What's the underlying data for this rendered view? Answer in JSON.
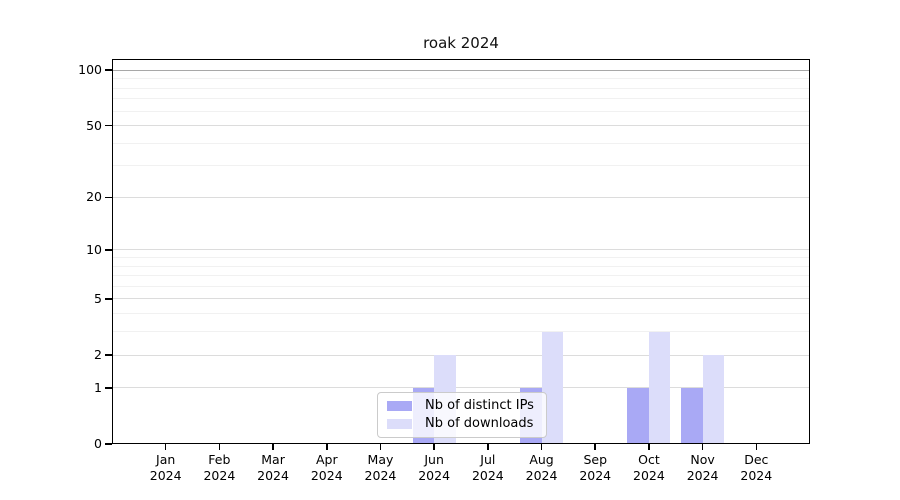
{
  "chart_data": {
    "type": "bar",
    "title": "roak 2024",
    "categories": [
      "Jan",
      "Feb",
      "Mar",
      "Apr",
      "May",
      "Jun",
      "Jul",
      "Aug",
      "Sep",
      "Oct",
      "Nov",
      "Dec"
    ],
    "category_year": "2024",
    "series": [
      {
        "name": "Nb of distinct IPs",
        "color": "#a9a9f5",
        "values": [
          0,
          0,
          0,
          0,
          0,
          1,
          0,
          1,
          0,
          1,
          1,
          0
        ]
      },
      {
        "name": "Nb of downloads",
        "color": "#dcddfa",
        "values": [
          0,
          0,
          0,
          0,
          0,
          2,
          0,
          3,
          0,
          3,
          2,
          0
        ]
      }
    ],
    "yscale": "log1p",
    "ylim": [
      0,
      115
    ],
    "yticks": [
      0,
      1,
      2,
      5,
      10,
      20,
      50,
      100
    ],
    "yminorticks": [
      3,
      4,
      6,
      7,
      8,
      9,
      30,
      40,
      60,
      70,
      80,
      90
    ],
    "grid": true,
    "legend_position": "bottom-center",
    "colors": {
      "grid_major": "#dcdcdc",
      "grid_minor": "#f1f1f1",
      "grid_top": "#a8a8a8",
      "axis": "#000000",
      "background": "#ffffff"
    }
  }
}
